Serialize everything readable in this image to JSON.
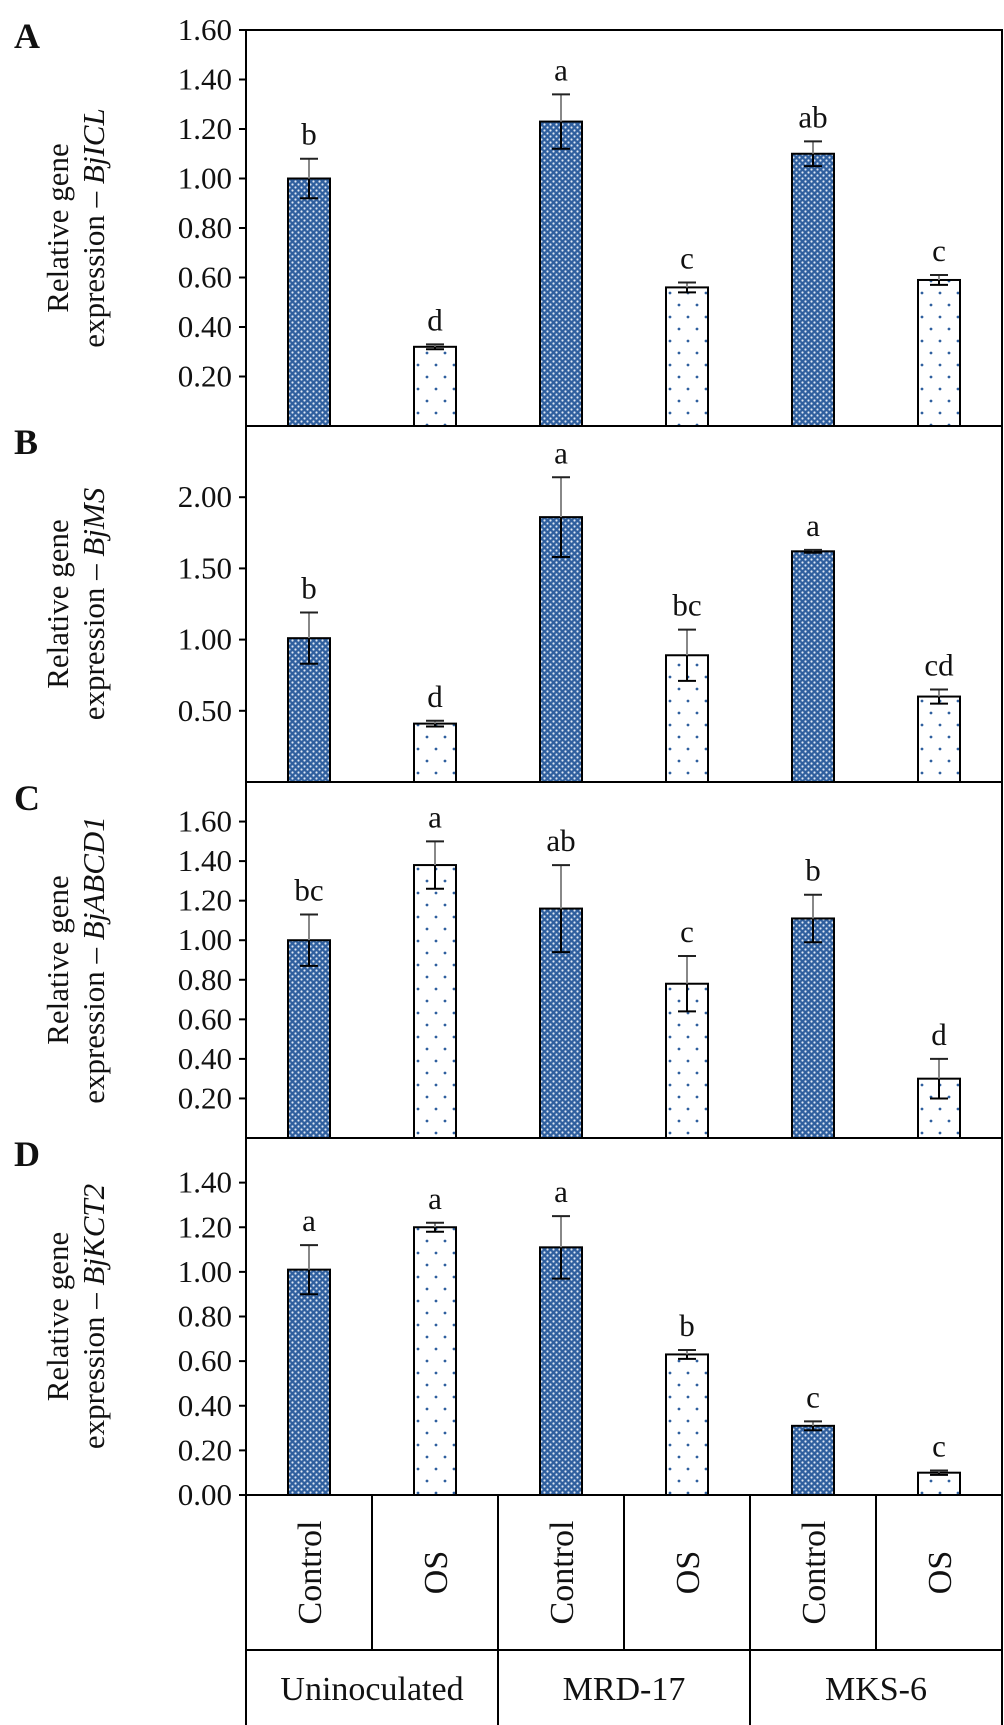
{
  "colors": {
    "control_fill": "#2f5f9e",
    "control_pattern_dot": "#dfe8f4",
    "os_fill": "#ffffff",
    "os_pattern_dot": "#2f5f9e",
    "axis": "#000000",
    "error_upper": "#888888",
    "error_lower": "#000000"
  },
  "x_axis": {
    "categories": [
      "Control",
      "OS",
      "Control",
      "OS",
      "Control",
      "OS"
    ],
    "groups": [
      "Uninoculated",
      "MRD-17",
      "MKS-6"
    ],
    "category_orientation": "vertical"
  },
  "chart_data": [
    {
      "panel": "A",
      "type": "bar",
      "ylabel_line1": "Relative gene",
      "ylabel_line2": "expression – ",
      "ylabel_gene": "BjICL",
      "ylim": [
        0.0,
        1.6
      ],
      "yticks": [
        "0.20",
        "0.40",
        "0.60",
        "0.80",
        "1.00",
        "1.20",
        "1.40",
        "1.60"
      ],
      "ytick_values": [
        0.2,
        0.4,
        0.6,
        0.8,
        1.0,
        1.2,
        1.4,
        1.6
      ],
      "values": [
        1.0,
        0.32,
        1.23,
        0.56,
        1.1,
        0.59
      ],
      "errors": [
        0.08,
        0.01,
        0.11,
        0.02,
        0.05,
        0.02
      ],
      "labels": [
        "b",
        "d",
        "a",
        "c",
        "ab",
        "c"
      ]
    },
    {
      "panel": "B",
      "type": "bar",
      "ylabel_line1": "Relative gene",
      "ylabel_line2": "expression – ",
      "ylabel_gene": "BjMS",
      "ylim": [
        0.0,
        2.5
      ],
      "yticks": [
        "0.50",
        "1.00",
        "1.50",
        "2.00"
      ],
      "ytick_values": [
        0.5,
        1.0,
        1.5,
        2.0
      ],
      "values": [
        1.01,
        0.41,
        1.86,
        0.89,
        1.62,
        0.6
      ],
      "errors": [
        0.18,
        0.02,
        0.28,
        0.18,
        0.01,
        0.05
      ],
      "labels": [
        "b",
        "d",
        "a",
        "bc",
        "a",
        "cd"
      ]
    },
    {
      "panel": "C",
      "type": "bar",
      "ylabel_line1": "Relative gene",
      "ylabel_line2": "expression – ",
      "ylabel_gene": "BjABCD1",
      "ylim": [
        0.0,
        1.8
      ],
      "yticks": [
        "0.20",
        "0.40",
        "0.60",
        "0.80",
        "1.00",
        "1.20",
        "1.40",
        "1.60"
      ],
      "ytick_values": [
        0.2,
        0.4,
        0.6,
        0.8,
        1.0,
        1.2,
        1.4,
        1.6
      ],
      "values": [
        1.0,
        1.38,
        1.16,
        0.78,
        1.11,
        0.3
      ],
      "errors": [
        0.13,
        0.12,
        0.22,
        0.14,
        0.12,
        0.1
      ],
      "labels": [
        "bc",
        "a",
        "ab",
        "c",
        "b",
        "d"
      ]
    },
    {
      "panel": "D",
      "type": "bar",
      "ylabel_line1": "Relative gene",
      "ylabel_line2": "expression – ",
      "ylabel_gene": "BjKCT2",
      "ylim": [
        0.0,
        1.6
      ],
      "yticks": [
        "0.00",
        "0.20",
        "0.40",
        "0.60",
        "0.80",
        "1.00",
        "1.20",
        "1.40"
      ],
      "ytick_values": [
        0.0,
        0.2,
        0.4,
        0.6,
        0.8,
        1.0,
        1.2,
        1.4
      ],
      "values": [
        1.01,
        1.2,
        1.11,
        0.63,
        0.31,
        0.1
      ],
      "errors": [
        0.11,
        0.02,
        0.14,
        0.02,
        0.02,
        0.01
      ],
      "labels": [
        "a",
        "a",
        "a",
        "b",
        "c",
        "c"
      ]
    }
  ]
}
